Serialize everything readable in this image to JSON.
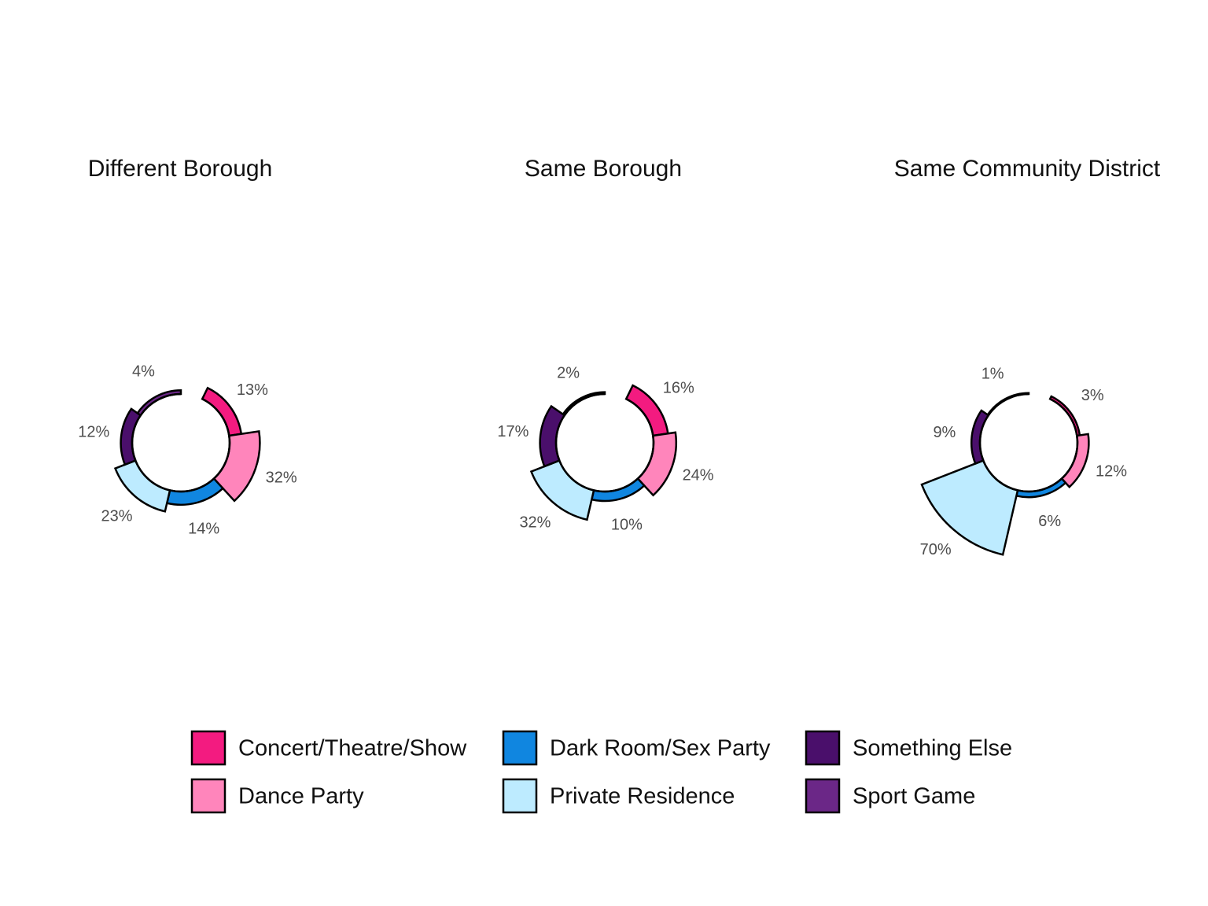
{
  "chart_data": {
    "type": "bar",
    "subtype": "polar-radial-bar",
    "categories": [
      "Concert/Theatre/Show",
      "Dance Party",
      "Dark Room/Sex Party",
      "Private Residence",
      "Something Else",
      "Sport Game"
    ],
    "colors": [
      "#F31B80",
      "#FF85BB",
      "#1086E0",
      "#BDEBFF",
      "#4A0F6B",
      "#6B2787"
    ],
    "panels": [
      {
        "title": "Different Borough",
        "values": [
          13,
          32,
          14,
          23,
          12,
          4
        ]
      },
      {
        "title": "Same Borough",
        "values": [
          16,
          24,
          10,
          32,
          17,
          2
        ]
      },
      {
        "title": "Same Community District",
        "values": [
          3,
          12,
          6,
          70,
          9,
          1
        ]
      }
    ],
    "value_suffix": "%",
    "legend": {
      "position": "bottom",
      "entries": [
        "Concert/Theatre/Show",
        "Dark Room/Sex Party",
        "Something Else",
        "Dance Party",
        "Private Residence",
        "Sport Game"
      ]
    }
  }
}
